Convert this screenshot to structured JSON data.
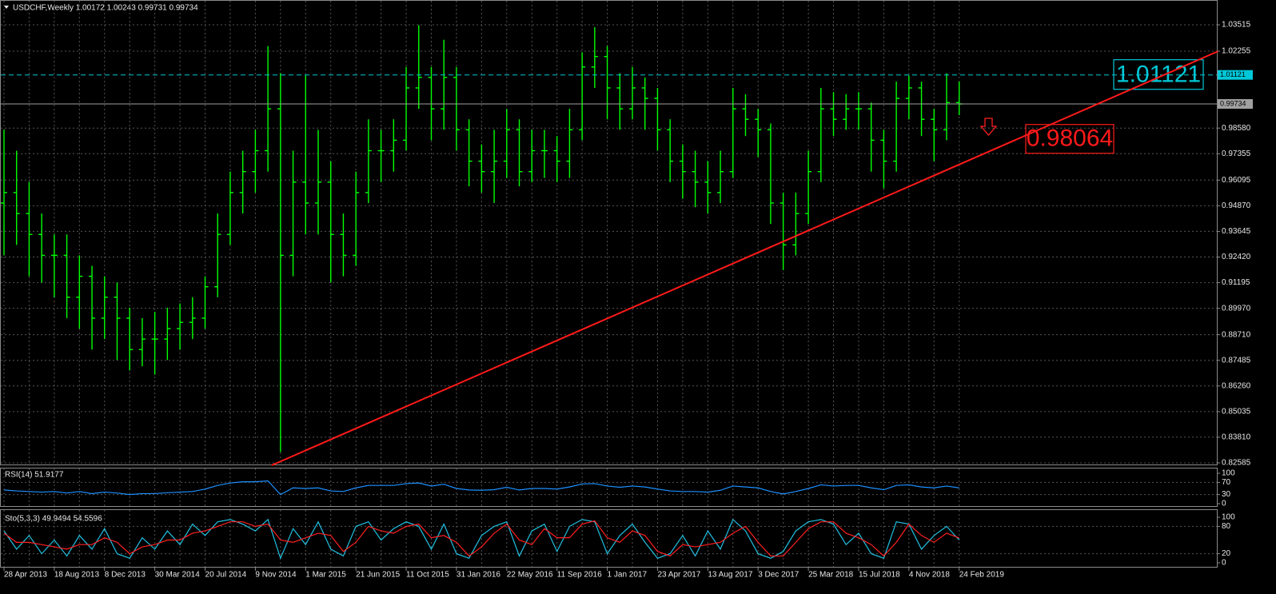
{
  "chart_data": [
    {
      "type": "ohlc",
      "title": "USDCHF,Weekly  1.00172 1.00243 0.99731 0.99734",
      "color": "#00ff00",
      "grid": true,
      "categories": [
        "28 Apr 2013",
        null,
        null,
        null,
        "18 Aug 2013",
        null,
        null,
        null,
        "8 Dec 2013",
        null,
        null,
        null,
        "30 Mar 2014",
        null,
        null,
        null,
        "20 Jul 2014",
        null,
        null,
        null,
        "9 Nov 2014",
        null,
        null,
        null,
        "1 Mar 2015",
        null,
        null,
        null,
        "21 Jun 2015",
        null,
        null,
        null,
        "11 Oct 2015",
        null,
        null,
        null,
        "31 Jan 2016",
        null,
        null,
        null,
        "22 May 2016",
        null,
        null,
        null,
        "11 Sep 2016",
        null,
        null,
        null,
        "1 Jan 2017",
        null,
        null,
        null,
        "23 Apr 2017",
        null,
        null,
        null,
        "13 Aug 2017",
        null,
        null,
        null,
        "3 Dec 2017",
        null,
        null,
        null,
        "25 Mar 2018",
        null,
        null,
        null,
        "15 Jul 2018",
        null,
        null,
        null,
        "4 Nov 2018",
        null,
        null,
        null,
        "24 Feb 2019"
      ],
      "open": [
        0.95,
        0.955,
        0.945,
        0.935,
        0.925,
        0.925,
        0.905,
        0.915,
        0.895,
        0.905,
        0.895,
        0.88,
        0.885,
        0.885,
        0.89,
        0.893,
        0.895,
        0.91,
        0.935,
        0.955,
        0.965,
        0.975,
        0.995,
        0.925,
        0.96,
        0.95,
        0.96,
        0.935,
        0.925,
        0.955,
        0.975,
        0.975,
        0.98,
        1.005,
        1.01,
        0.995,
        1.01,
        0.985,
        0.97,
        0.965,
        0.97,
        0.985,
        0.965,
        0.975,
        0.975,
        0.97,
        0.985,
        1.015,
        1.02,
        1.005,
        0.995,
        1.005,
        1.0,
        0.985,
        0.97,
        0.965,
        0.96,
        0.955,
        0.965,
        0.995,
        0.99,
        0.985,
        0.95,
        0.93,
        0.945,
        0.965,
        0.995,
        0.99,
        0.995,
        0.995,
        0.98,
        0.97,
        1.0,
        1.005,
        0.99,
        0.985,
        0.998
      ],
      "high": [
        0.985,
        0.975,
        0.96,
        0.945,
        0.935,
        0.935,
        0.925,
        0.92,
        0.915,
        0.912,
        0.9,
        0.895,
        0.898,
        0.9,
        0.902,
        0.905,
        0.915,
        0.945,
        0.965,
        0.975,
        0.985,
        1.025,
        1.012,
        0.975,
        1.011,
        0.985,
        0.97,
        0.945,
        0.965,
        0.99,
        0.985,
        0.99,
        1.015,
        1.035,
        1.015,
        1.028,
        1.015,
        0.99,
        0.978,
        0.985,
        0.995,
        0.99,
        0.985,
        0.985,
        0.982,
        0.995,
        1.022,
        1.034,
        1.025,
        1.012,
        1.015,
        1.01,
        1.005,
        0.99,
        0.978,
        0.975,
        0.97,
        0.975,
        1.005,
        1.002,
        0.995,
        0.988,
        0.955,
        0.955,
        0.975,
        1.005,
        1.003,
        1.002,
        1.003,
        0.998,
        0.985,
        1.008,
        1.011,
        1.008,
        0.995,
        1.012,
        1.008
      ],
      "low": [
        0.925,
        0.93,
        0.915,
        0.912,
        0.905,
        0.895,
        0.89,
        0.88,
        0.885,
        0.875,
        0.87,
        0.872,
        0.868,
        0.875,
        0.88,
        0.885,
        0.89,
        0.905,
        0.93,
        0.945,
        0.955,
        0.965,
        0.831,
        0.915,
        0.935,
        0.935,
        0.912,
        0.915,
        0.92,
        0.95,
        0.96,
        0.965,
        0.975,
        0.995,
        0.98,
        0.985,
        0.975,
        0.958,
        0.955,
        0.95,
        0.962,
        0.958,
        0.96,
        0.962,
        0.96,
        0.962,
        0.98,
        1.005,
        0.99,
        0.985,
        0.99,
        0.985,
        0.975,
        0.96,
        0.952,
        0.948,
        0.945,
        0.95,
        0.962,
        0.982,
        0.972,
        0.94,
        0.918,
        0.925,
        0.94,
        0.96,
        0.982,
        0.985,
        0.985,
        0.965,
        0.957,
        0.965,
        0.99,
        0.982,
        0.97,
        0.98,
        0.992
      ],
      "close": [
        0.955,
        0.945,
        0.935,
        0.925,
        0.925,
        0.905,
        0.915,
        0.895,
        0.905,
        0.895,
        0.88,
        0.885,
        0.885,
        0.89,
        0.893,
        0.895,
        0.91,
        0.935,
        0.955,
        0.965,
        0.975,
        0.995,
        0.925,
        0.96,
        0.95,
        0.96,
        0.935,
        0.925,
        0.955,
        0.975,
        0.975,
        0.98,
        1.005,
        1.01,
        0.995,
        1.01,
        0.985,
        0.97,
        0.965,
        0.97,
        0.985,
        0.965,
        0.975,
        0.975,
        0.97,
        0.985,
        1.015,
        1.02,
        1.005,
        0.995,
        1.005,
        1.0,
        0.985,
        0.97,
        0.965,
        0.96,
        0.955,
        0.965,
        0.995,
        0.99,
        0.985,
        0.95,
        0.93,
        0.945,
        0.965,
        0.995,
        0.99,
        0.995,
        0.995,
        0.98,
        0.97,
        1.0,
        1.005,
        0.99,
        0.985,
        0.998,
        0.99734
      ],
      "ylim": [
        0.8247,
        1.047
      ],
      "yticks": [
        1.03515,
        1.02255,
        {
          "value": 0.9858,
          "label": "0.98580"
        },
        0.97355,
        0.96095,
        {
          "value": 0.9487,
          "label": "0.94870"
        },
        0.93645,
        {
          "value": 0.9242,
          "label": "0.92420"
        },
        0.91195,
        {
          "value": 0.8997,
          "label": "0.89970"
        },
        {
          "value": 0.8871,
          "label": "0.88710"
        },
        0.87485,
        {
          "value": 0.8626,
          "label": "0.86260"
        },
        0.85035,
        {
          "value": 0.8381,
          "label": "0.83810"
        },
        0.82585
      ],
      "levels": [
        {
          "value": 1.01121,
          "color": "#00c8d8",
          "style": "dashed"
        },
        {
          "value": 0.99734,
          "color": "#a0a0a0",
          "style": "solid"
        }
      ],
      "trendline": {
        "color": "#ff1a1a",
        "x": [
          21.3,
          96.6
        ],
        "y": [
          0.8247,
          1.0225
        ],
        "label": 0.98064
      }
    },
    {
      "type": "line",
      "title": "RSI(14) 51.9177",
      "color": "#1e90ff",
      "values": [
        45,
        42,
        40,
        38,
        40,
        35,
        40,
        33,
        38,
        35,
        30,
        33,
        33,
        36,
        38,
        40,
        48,
        60,
        68,
        72,
        72,
        75,
        30,
        52,
        50,
        52,
        42,
        40,
        52,
        60,
        60,
        60,
        66,
        68,
        58,
        64,
        50,
        45,
        44,
        46,
        54,
        45,
        50,
        50,
        48,
        55,
        65,
        66,
        58,
        54,
        58,
        55,
        48,
        42,
        40,
        40,
        38,
        44,
        58,
        55,
        52,
        40,
        32,
        40,
        50,
        62,
        58,
        60,
        60,
        52,
        46,
        60,
        62,
        55,
        52,
        58,
        51.9177
      ],
      "ylim": [
        0,
        100
      ],
      "yticks": [
        100,
        70,
        30,
        0
      ]
    },
    {
      "type": "line",
      "title": "Sto(5,3,3) 49.9494 54.5596",
      "series": [
        {
          "color": "#20c0e0",
          "values": [
            70,
            30,
            60,
            20,
            50,
            15,
            60,
            30,
            75,
            20,
            10,
            55,
            30,
            70,
            40,
            85,
            60,
            90,
            95,
            85,
            70,
            95,
            10,
            75,
            40,
            90,
            30,
            15,
            80,
            90,
            50,
            75,
            90,
            80,
            30,
            85,
            20,
            10,
            60,
            80,
            90,
            15,
            70,
            85,
            25,
            80,
            95,
            90,
            20,
            60,
            85,
            45,
            10,
            20,
            60,
            15,
            70,
            30,
            95,
            70,
            20,
            10,
            25,
            70,
            90,
            95,
            85,
            40,
            65,
            20,
            10,
            90,
            85,
            30,
            60,
            80,
            49.9494
          ]
        },
        {
          "color": "#ff2020",
          "values": [
            65,
            45,
            45,
            40,
            35,
            30,
            40,
            40,
            55,
            45,
            20,
            35,
            40,
            50,
            50,
            65,
            70,
            80,
            90,
            90,
            80,
            85,
            50,
            45,
            55,
            65,
            60,
            25,
            45,
            80,
            70,
            65,
            80,
            85,
            55,
            60,
            45,
            15,
            35,
            65,
            85,
            50,
            40,
            75,
            55,
            55,
            85,
            92,
            55,
            45,
            70,
            60,
            25,
            15,
            40,
            35,
            40,
            45,
            65,
            80,
            45,
            15,
            15,
            45,
            75,
            90,
            90,
            65,
            55,
            40,
            15,
            45,
            85,
            60,
            45,
            65,
            54.5596
          ]
        }
      ],
      "ylim": [
        0,
        100
      ],
      "yticks": [
        100,
        80,
        20,
        0
      ]
    }
  ]
}
